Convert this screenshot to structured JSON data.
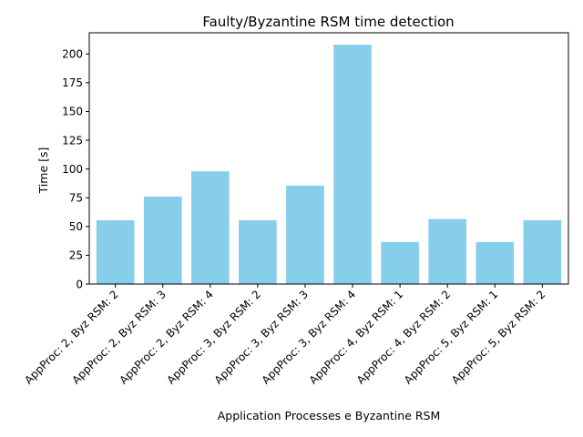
{
  "chart_data": {
    "type": "bar",
    "title": "Faulty/Byzantine RSM time detection",
    "xlabel": "Application Processes e Byzantine RSM",
    "ylabel": "Time [s]",
    "categories": [
      "AppProc: 2, Byz RSM: 2",
      "AppProc: 2, Byz RSM: 3",
      "AppProc: 2, Byz RSM: 4",
      "AppProc: 3, Byz RSM: 2",
      "AppProc: 3, Byz RSM: 3",
      "AppProc: 3, Byz RSM: 4",
      "AppProc: 4, Byz RSM: 1",
      "AppProc: 4, Byz RSM: 2",
      "AppProc: 5, Byz RSM: 1",
      "AppProc: 5, Byz RSM: 2"
    ],
    "values": [
      55.5,
      76,
      98,
      55.5,
      85.5,
      208,
      36.5,
      56.5,
      36.5,
      55.5
    ],
    "ylim": [
      0,
      218.4
    ],
    "yticks": [
      0,
      25,
      50,
      75,
      100,
      125,
      150,
      175,
      200
    ],
    "bar_color": "#87ceeb",
    "grid": false,
    "legend": false
  }
}
